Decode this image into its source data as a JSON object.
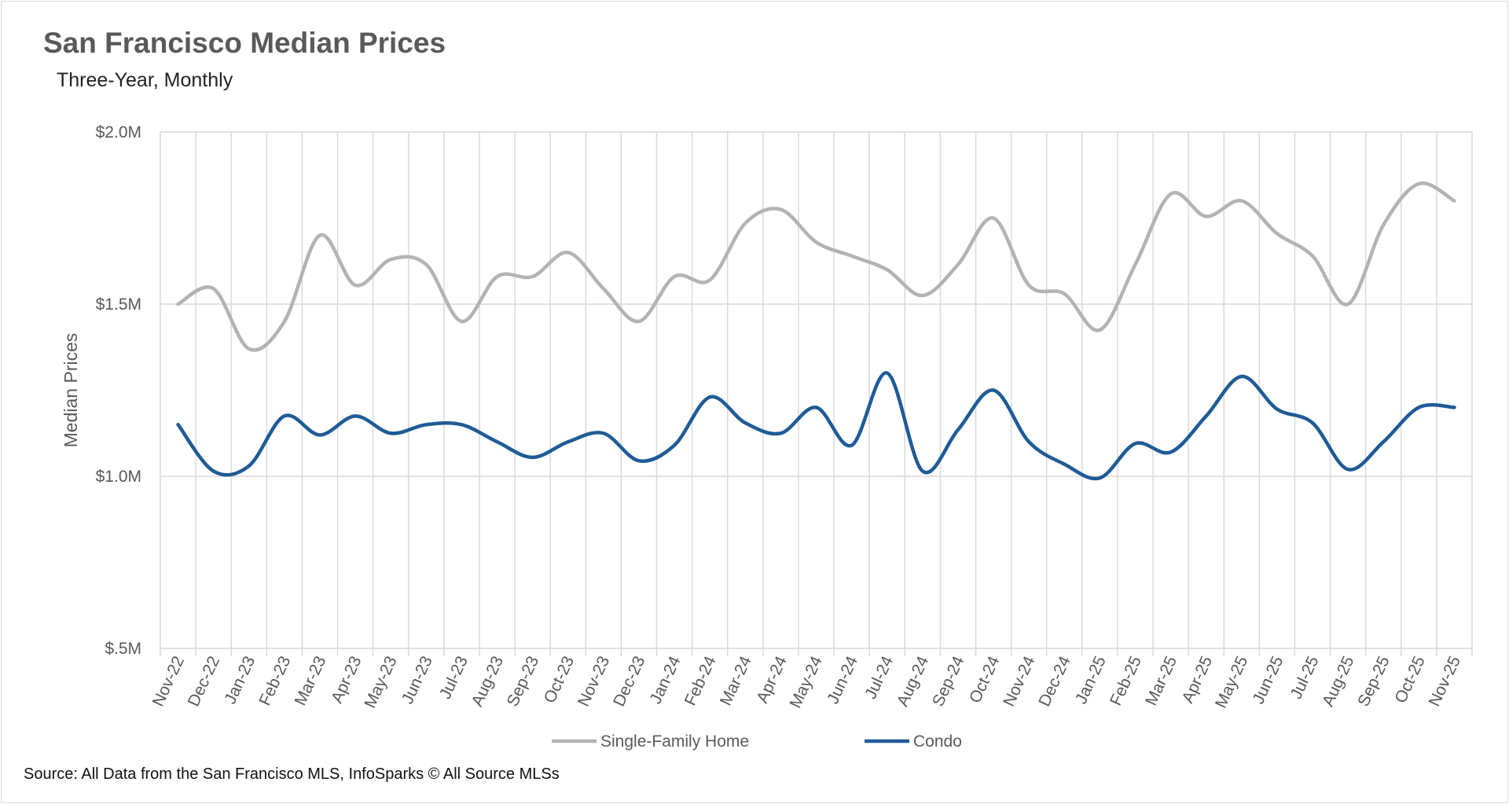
{
  "title": "San Francisco Median Prices",
  "subtitle": "Three-Year, Monthly",
  "source": "Source: All Data from the San Francisco MLS, InfoSparks © All Source MLSs",
  "chart_data": {
    "type": "line",
    "title": "San Francisco Median Prices",
    "subtitle": "Three-Year, Monthly",
    "ylabel": "Median Prices",
    "xlabel": "",
    "ylim": [
      0.5,
      2.0
    ],
    "y_unit": "$M",
    "yticks": [
      2.0,
      1.5,
      1.0,
      0.5
    ],
    "ytick_labels": [
      "$2.0M",
      "$1.5M",
      "$1.0M",
      "$.5M"
    ],
    "grid": "both",
    "smoothed": true,
    "legend": "bottom",
    "categories": [
      "Nov-22",
      "Dec-22",
      "Jan-23",
      "Feb-23",
      "Mar-23",
      "Apr-23",
      "May-23",
      "Jun-23",
      "Jul-23",
      "Aug-23",
      "Sep-23",
      "Oct-23",
      "Nov-23",
      "Dec-23",
      "Jan-24",
      "Feb-24",
      "Mar-24",
      "Apr-24",
      "May-24",
      "Jun-24",
      "Jul-24",
      "Aug-24",
      "Sep-24",
      "Oct-24",
      "Nov-24",
      "Dec-24",
      "Jan-25",
      "Feb-25",
      "Mar-25",
      "Apr-25",
      "May-25",
      "Jun-25",
      "Jul-25",
      "Aug-25",
      "Sep-25",
      "Oct-25",
      "Nov-25"
    ],
    "series": [
      {
        "name": "Single-Family Home",
        "color": "#b3b3b3",
        "values": [
          1.5,
          1.545,
          1.37,
          1.45,
          1.7,
          1.555,
          1.63,
          1.615,
          1.45,
          1.58,
          1.58,
          1.65,
          1.545,
          1.45,
          1.58,
          1.57,
          1.735,
          1.775,
          1.68,
          1.64,
          1.6,
          1.525,
          1.615,
          1.75,
          1.555,
          1.53,
          1.425,
          1.615,
          1.82,
          1.755,
          1.8,
          1.705,
          1.64,
          1.5,
          1.73,
          1.85,
          1.8
        ]
      },
      {
        "name": "Condo",
        "color": "#1f5b96",
        "values": [
          1.15,
          1.015,
          1.03,
          1.175,
          1.12,
          1.175,
          1.125,
          1.15,
          1.15,
          1.1,
          1.055,
          1.1,
          1.125,
          1.045,
          1.09,
          1.23,
          1.155,
          1.125,
          1.2,
          1.09,
          1.3,
          1.015,
          1.135,
          1.25,
          1.1,
          1.035,
          0.995,
          1.095,
          1.07,
          1.175,
          1.29,
          1.195,
          1.155,
          1.02,
          1.1,
          1.2,
          1.2
        ]
      }
    ]
  }
}
